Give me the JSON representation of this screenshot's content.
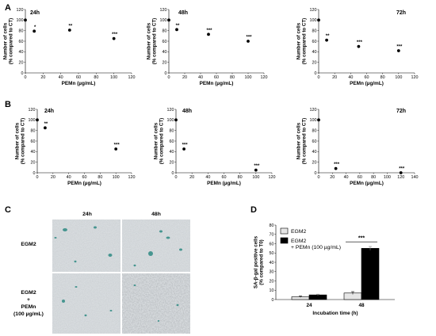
{
  "panel_labels": {
    "A": "A",
    "B": "B",
    "C": "C",
    "D": "D"
  },
  "common": {
    "ylabel_line1": "Number of cells",
    "ylabel_line2": "(% compared to CT)",
    "xlabel": "PEMn (µg/mL)"
  },
  "chart_data": [
    {
      "id": "A1",
      "type": "scatter",
      "panel": "A",
      "time_label": "24h",
      "x": [
        0,
        10,
        50,
        100
      ],
      "y": [
        100,
        79,
        81,
        65
      ],
      "significance": [
        "",
        "*",
        "**",
        "***"
      ],
      "xlim": [
        0,
        120
      ],
      "ylim": [
        0,
        120
      ],
      "xticks": [
        0,
        20,
        40,
        60,
        80,
        100,
        120
      ],
      "yticks": [
        0,
        20,
        40,
        60,
        80,
        100,
        120
      ]
    },
    {
      "id": "A2",
      "type": "scatter",
      "panel": "A",
      "time_label": "48h",
      "x": [
        0,
        10,
        50,
        100
      ],
      "y": [
        100,
        82,
        73,
        60
      ],
      "significance": [
        "",
        "**",
        "***",
        "***"
      ],
      "xlim": [
        0,
        120
      ],
      "ylim": [
        0,
        120
      ],
      "xticks": [
        0,
        20,
        40,
        60,
        80,
        100,
        120
      ],
      "yticks": [
        0,
        20,
        40,
        60,
        80,
        100,
        120
      ]
    },
    {
      "id": "A3",
      "type": "scatter",
      "panel": "A",
      "time_label": "72h",
      "x": [
        0,
        10,
        50,
        100
      ],
      "y": [
        100,
        62,
        50,
        42
      ],
      "significance": [
        "",
        "**",
        "***",
        "***"
      ],
      "xlim": [
        0,
        120
      ],
      "ylim": [
        0,
        120
      ],
      "xticks": [
        0,
        20,
        40,
        60,
        80,
        100,
        120
      ],
      "yticks": [
        0,
        20,
        40,
        60,
        80,
        100,
        120
      ]
    },
    {
      "id": "B1",
      "type": "scatter",
      "panel": "B",
      "time_label": "24h",
      "x": [
        0,
        10,
        100
      ],
      "y": [
        100,
        85,
        45
      ],
      "significance": [
        "",
        "**",
        "***"
      ],
      "xlim": [
        0,
        120
      ],
      "ylim": [
        0,
        120
      ],
      "xticks": [
        0,
        20,
        40,
        60,
        80,
        100,
        120
      ],
      "yticks": [
        0,
        20,
        40,
        60,
        80,
        100,
        120
      ]
    },
    {
      "id": "B2",
      "type": "scatter",
      "panel": "B",
      "time_label": "48h",
      "x": [
        0,
        10,
        100
      ],
      "y": [
        100,
        45,
        5
      ],
      "significance": [
        "",
        "***",
        "***"
      ],
      "xlim": [
        0,
        120
      ],
      "ylim": [
        0,
        120
      ],
      "xticks": [
        0,
        20,
        40,
        60,
        80,
        100,
        120
      ],
      "yticks": [
        0,
        20,
        40,
        60,
        80,
        100,
        120
      ]
    },
    {
      "id": "B3",
      "type": "scatter",
      "panel": "B",
      "time_label": "72h",
      "x": [
        0,
        25,
        120
      ],
      "y": [
        100,
        8,
        0
      ],
      "significance": [
        "",
        "***",
        "***"
      ],
      "xlim": [
        0,
        140
      ],
      "ylim": [
        0,
        120
      ],
      "xticks": [
        0,
        20,
        40,
        60,
        80,
        100,
        120,
        140
      ],
      "yticks": [
        0,
        20,
        40,
        60,
        80,
        100,
        120
      ]
    },
    {
      "id": "D",
      "type": "bar",
      "panel": "D",
      "categories": [
        "24",
        "48"
      ],
      "series": [
        {
          "name": "EGM2",
          "values": [
            3,
            7
          ],
          "errors": [
            0.8,
            1.5
          ],
          "color": "#e6e6e6"
        },
        {
          "name": "EGM2 + PEMn (100 µg/mL)",
          "values": [
            5,
            55
          ],
          "errors": [
            0.8,
            2
          ],
          "color": "#000000"
        }
      ],
      "ylim": [
        0,
        80
      ],
      "yticks": [
        0,
        10,
        20,
        30,
        40,
        50,
        60,
        70,
        80
      ],
      "ylabel_line1": "SA-β-gal positive cells",
      "ylabel_line2": "(% compared to T0)",
      "xlabel": "Incubation time (h)",
      "legend_1": "EGM2",
      "legend_2_line1": "EGM2",
      "legend_2_line2": "+ PEMn (100 µg/mL)",
      "significance": "***",
      "legend": "top-left"
    }
  ],
  "panel_c": {
    "col_labels": [
      "24h",
      "48h"
    ],
    "row_1_label": "EGM2",
    "row_2_label_lines": [
      "EGM2",
      "+",
      "PEMn",
      "(100 µg/mL)"
    ],
    "colors": {
      "tile_bg": "#d9dde0",
      "stain": "#2e8a82"
    }
  }
}
